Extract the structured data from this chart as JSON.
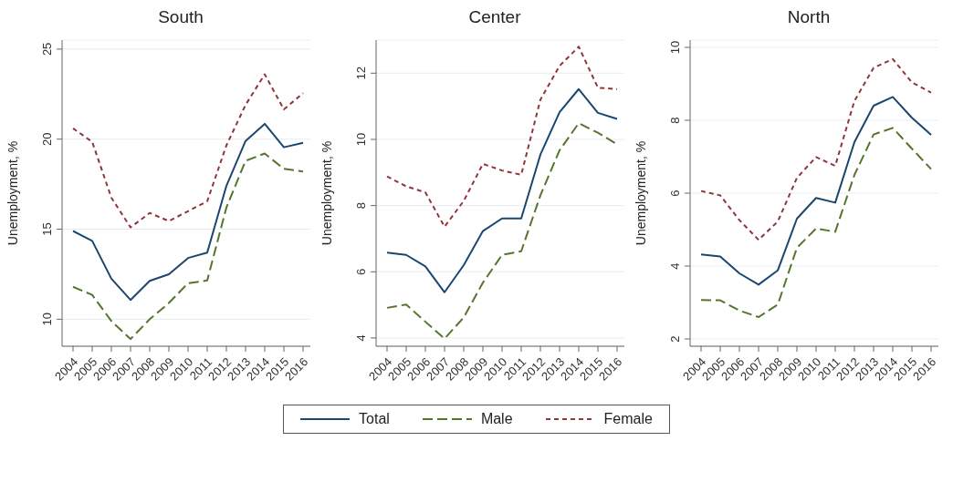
{
  "chart_data": [
    {
      "type": "line",
      "title": "South",
      "ylabel": "Unemployment, %",
      "categories": [
        "2004",
        "2005",
        "2006",
        "2007",
        "2008",
        "2009",
        "2010",
        "2011",
        "2012",
        "2013",
        "2014",
        "2015",
        "2016"
      ],
      "ylim": [
        8.5,
        25.5
      ],
      "yticks": [
        10,
        15,
        20,
        25
      ],
      "grid": "y",
      "legend": "bottom",
      "marker": "none",
      "series": [
        {
          "name": "Total",
          "color": "#1a476f",
          "line_style": "solid",
          "values": [
            14.9,
            14.35,
            12.25,
            11.07,
            12.13,
            12.5,
            13.4,
            13.7,
            17.4,
            19.9,
            20.85,
            19.55,
            19.8
          ]
        },
        {
          "name": "Male",
          "color": "#55752f",
          "line_style": "dashed",
          "values": [
            11.8,
            11.35,
            9.9,
            8.9,
            10.0,
            10.9,
            12.0,
            12.15,
            16.2,
            18.8,
            19.2,
            18.35,
            18.2
          ]
        },
        {
          "name": "Female",
          "color": "#90353b",
          "line_style": "dotted",
          "values": [
            20.6,
            19.85,
            16.75,
            15.1,
            15.9,
            15.45,
            16.0,
            16.55,
            19.65,
            21.9,
            23.6,
            21.65,
            22.55
          ]
        }
      ]
    },
    {
      "type": "line",
      "title": "Center",
      "ylabel": "Unemployment, %",
      "categories": [
        "2004",
        "2005",
        "2006",
        "2007",
        "2008",
        "2009",
        "2010",
        "2011",
        "2012",
        "2013",
        "2014",
        "2015",
        "2016"
      ],
      "ylim": [
        3.75,
        13
      ],
      "yticks": [
        4,
        6,
        8,
        10,
        12
      ],
      "grid": "y",
      "marker": "none",
      "series": [
        {
          "color": "#1a476f",
          "line_style": "solid",
          "values": [
            6.58,
            6.51,
            6.16,
            5.38,
            6.2,
            7.23,
            7.61,
            7.61,
            9.54,
            10.82,
            11.52,
            10.8,
            10.62
          ]
        },
        {
          "color": "#55752f",
          "line_style": "dashed",
          "values": [
            4.91,
            5.01,
            4.49,
            3.98,
            4.62,
            5.67,
            6.51,
            6.62,
            8.31,
            9.67,
            10.49,
            10.2,
            9.85
          ]
        },
        {
          "color": "#90353b",
          "line_style": "dotted",
          "values": [
            8.88,
            8.58,
            8.4,
            7.36,
            8.14,
            9.26,
            9.06,
            8.93,
            11.2,
            12.22,
            12.8,
            11.56,
            11.52
          ]
        }
      ]
    },
    {
      "type": "line",
      "title": "North",
      "ylabel": "Unemployment, %",
      "categories": [
        "2004",
        "2005",
        "2006",
        "2007",
        "2008",
        "2009",
        "2010",
        "2011",
        "2012",
        "2013",
        "2014",
        "2015",
        "2016"
      ],
      "ylim": [
        1.8,
        10.2
      ],
      "yticks": [
        2,
        4,
        6,
        8,
        10
      ],
      "grid": "y",
      "marker": "none",
      "series": [
        {
          "color": "#1a476f",
          "line_style": "solid",
          "values": [
            4.32,
            4.26,
            3.8,
            3.49,
            3.88,
            5.3,
            5.87,
            5.74,
            7.4,
            8.4,
            8.64,
            8.07,
            7.6
          ]
        },
        {
          "color": "#55752f",
          "line_style": "dashed",
          "values": [
            3.07,
            3.06,
            2.78,
            2.6,
            2.94,
            4.5,
            5.03,
            4.94,
            6.5,
            7.61,
            7.79,
            7.22,
            6.66
          ]
        },
        {
          "color": "#90353b",
          "line_style": "dotted",
          "values": [
            6.06,
            5.94,
            5.26,
            4.72,
            5.22,
            6.42,
            6.99,
            6.75,
            8.53,
            9.44,
            9.68,
            9.04,
            8.76
          ]
        }
      ]
    }
  ]
}
